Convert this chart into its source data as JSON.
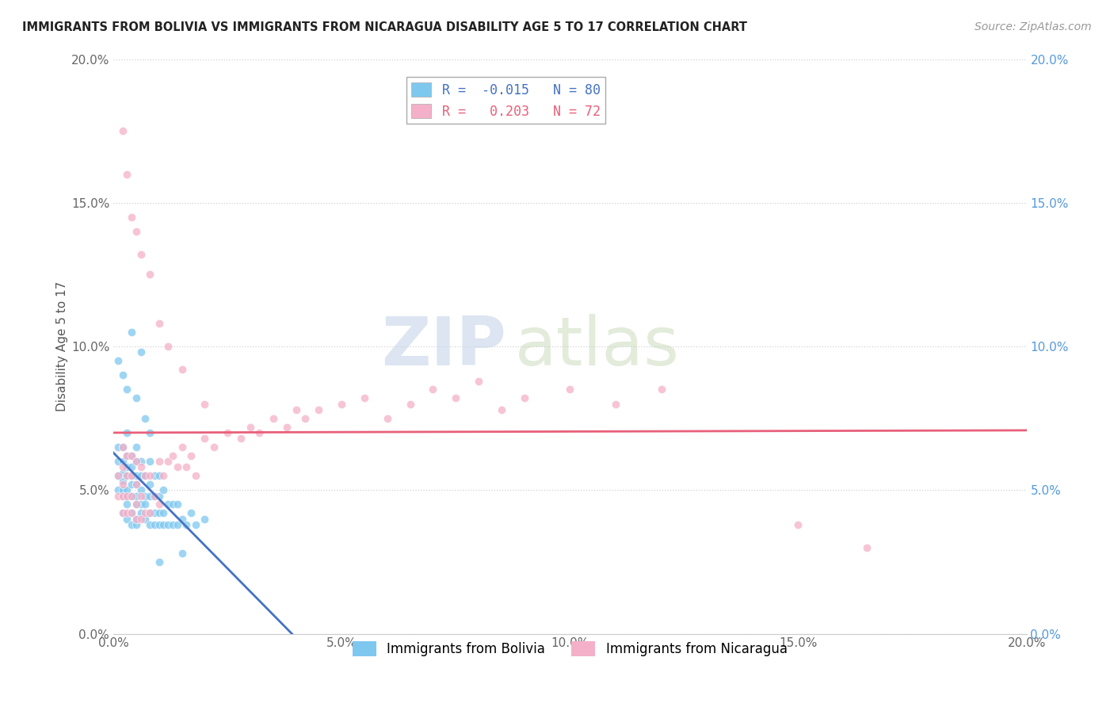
{
  "title": "IMMIGRANTS FROM BOLIVIA VS IMMIGRANTS FROM NICARAGUA DISABILITY AGE 5 TO 17 CORRELATION CHART",
  "source": "Source: ZipAtlas.com",
  "ylabel": "Disability Age 5 to 17",
  "watermark_zip": "ZIP",
  "watermark_atlas": "atlas",
  "series": [
    {
      "name": "Immigrants from Bolivia",
      "color": "#7ec8f0",
      "R": -0.015,
      "N": 80,
      "line_color": "#4472c4",
      "line_style_solid": "-",
      "line_style_dash": "--"
    },
    {
      "name": "Immigrants from Nicaragua",
      "color": "#f4b0c8",
      "R": 0.203,
      "N": 72,
      "line_color": "#e8607a",
      "line_style": "-"
    }
  ],
  "xlim": [
    0.0,
    0.2
  ],
  "ylim": [
    0.0,
    0.2
  ],
  "xticks": [
    0.0,
    0.05,
    0.1,
    0.15,
    0.2
  ],
  "yticks": [
    0.0,
    0.05,
    0.1,
    0.15,
    0.2
  ],
  "xticklabels": [
    "0.0%",
    "5.0%",
    "10.0%",
    "15.0%",
    "20.0%"
  ],
  "yticklabels": [
    "0.0%",
    "5.0%",
    "10.0%",
    "15.0%",
    "20.0%"
  ],
  "bolivia_x": [
    0.001,
    0.001,
    0.001,
    0.001,
    0.002,
    0.002,
    0.002,
    0.002,
    0.002,
    0.002,
    0.002,
    0.003,
    0.003,
    0.003,
    0.003,
    0.003,
    0.003,
    0.003,
    0.003,
    0.004,
    0.004,
    0.004,
    0.004,
    0.004,
    0.004,
    0.004,
    0.005,
    0.005,
    0.005,
    0.005,
    0.005,
    0.005,
    0.005,
    0.005,
    0.006,
    0.006,
    0.006,
    0.006,
    0.006,
    0.007,
    0.007,
    0.007,
    0.007,
    0.008,
    0.008,
    0.008,
    0.008,
    0.008,
    0.009,
    0.009,
    0.009,
    0.009,
    0.01,
    0.01,
    0.01,
    0.01,
    0.011,
    0.011,
    0.011,
    0.012,
    0.012,
    0.013,
    0.013,
    0.014,
    0.014,
    0.015,
    0.016,
    0.017,
    0.018,
    0.02,
    0.001,
    0.002,
    0.003,
    0.004,
    0.005,
    0.006,
    0.007,
    0.008,
    0.01,
    0.015
  ],
  "bolivia_y": [
    0.05,
    0.055,
    0.06,
    0.065,
    0.042,
    0.048,
    0.05,
    0.053,
    0.056,
    0.06,
    0.065,
    0.04,
    0.045,
    0.048,
    0.05,
    0.055,
    0.058,
    0.062,
    0.07,
    0.038,
    0.042,
    0.048,
    0.052,
    0.055,
    0.058,
    0.062,
    0.038,
    0.04,
    0.045,
    0.048,
    0.052,
    0.055,
    0.06,
    0.065,
    0.042,
    0.045,
    0.05,
    0.055,
    0.06,
    0.04,
    0.045,
    0.048,
    0.055,
    0.038,
    0.042,
    0.048,
    0.052,
    0.06,
    0.038,
    0.042,
    0.048,
    0.055,
    0.038,
    0.042,
    0.048,
    0.055,
    0.038,
    0.042,
    0.05,
    0.038,
    0.045,
    0.038,
    0.045,
    0.038,
    0.045,
    0.04,
    0.038,
    0.042,
    0.038,
    0.04,
    0.095,
    0.09,
    0.085,
    0.105,
    0.082,
    0.098,
    0.075,
    0.07,
    0.025,
    0.028
  ],
  "nicaragua_x": [
    0.001,
    0.001,
    0.002,
    0.002,
    0.002,
    0.002,
    0.002,
    0.003,
    0.003,
    0.003,
    0.003,
    0.004,
    0.004,
    0.004,
    0.004,
    0.005,
    0.005,
    0.005,
    0.005,
    0.006,
    0.006,
    0.006,
    0.007,
    0.007,
    0.008,
    0.008,
    0.009,
    0.01,
    0.01,
    0.011,
    0.012,
    0.013,
    0.014,
    0.015,
    0.016,
    0.017,
    0.018,
    0.02,
    0.022,
    0.025,
    0.028,
    0.03,
    0.032,
    0.035,
    0.038,
    0.04,
    0.042,
    0.045,
    0.05,
    0.055,
    0.06,
    0.065,
    0.07,
    0.075,
    0.08,
    0.085,
    0.09,
    0.1,
    0.11,
    0.12,
    0.002,
    0.003,
    0.004,
    0.005,
    0.006,
    0.008,
    0.01,
    0.012,
    0.015,
    0.02,
    0.165,
    0.15
  ],
  "nicaragua_y": [
    0.048,
    0.055,
    0.042,
    0.048,
    0.052,
    0.058,
    0.065,
    0.042,
    0.048,
    0.055,
    0.062,
    0.042,
    0.048,
    0.055,
    0.062,
    0.04,
    0.045,
    0.052,
    0.06,
    0.04,
    0.048,
    0.058,
    0.042,
    0.055,
    0.042,
    0.055,
    0.048,
    0.045,
    0.06,
    0.055,
    0.06,
    0.062,
    0.058,
    0.065,
    0.058,
    0.062,
    0.055,
    0.068,
    0.065,
    0.07,
    0.068,
    0.072,
    0.07,
    0.075,
    0.072,
    0.078,
    0.075,
    0.078,
    0.08,
    0.082,
    0.075,
    0.08,
    0.085,
    0.082,
    0.088,
    0.078,
    0.082,
    0.085,
    0.08,
    0.085,
    0.175,
    0.16,
    0.145,
    0.14,
    0.132,
    0.125,
    0.108,
    0.1,
    0.092,
    0.08,
    0.03,
    0.038
  ]
}
